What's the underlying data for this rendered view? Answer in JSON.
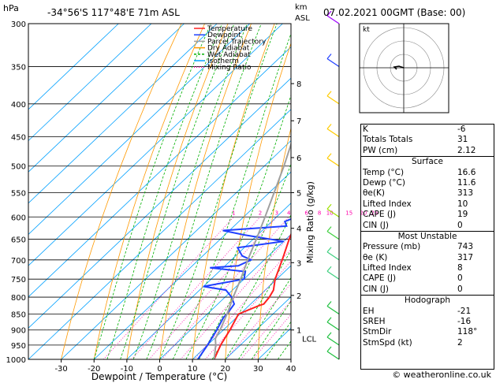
{
  "header": {
    "left_unit": "hPa",
    "location": "-34°56'S  117°48'E  71m  ASL",
    "right_unit": "km\nASL",
    "datetime": "07.02.2021  00GMT  (Base: 00)"
  },
  "footer": {
    "credit": "© weatheronline.co.uk"
  },
  "colors": {
    "temperature": "#ff2020",
    "dewpoint": "#2040ff",
    "parcel": "#a0a0a0",
    "dry_adiabat": "#ff9900",
    "wet_adiabat": "#00b000",
    "isotherm": "#00a0ff",
    "mixing_ratio": "#ff00aa"
  },
  "hodograph": {
    "label": "kt",
    "rings": [
      10,
      20,
      30
    ]
  },
  "indices": {
    "basic": [
      {
        "label": "K",
        "value": "-6"
      },
      {
        "label": "Totals Totals",
        "value": "31"
      },
      {
        "label": "PW (cm)",
        "value": "2.12"
      }
    ],
    "surface": {
      "title": "Surface",
      "rows": [
        {
          "label": "Temp (°C)",
          "value": "16.6"
        },
        {
          "label": "Dewp (°C)",
          "value": "11.6"
        },
        {
          "label": "θe(K)",
          "value": "313"
        },
        {
          "label": "Lifted Index",
          "value": "10"
        },
        {
          "label": "CAPE (J)",
          "value": "19"
        },
        {
          "label": "CIN (J)",
          "value": "0"
        }
      ]
    },
    "most_unstable": {
      "title": "Most Unstable",
      "rows": [
        {
          "label": "Pressure (mb)",
          "value": "743"
        },
        {
          "label": "θe (K)",
          "value": "317"
        },
        {
          "label": "Lifted Index",
          "value": "8"
        },
        {
          "label": "CAPE (J)",
          "value": "0"
        },
        {
          "label": "CIN (J)",
          "value": "0"
        }
      ]
    },
    "hodograph": {
      "title": "Hodograph",
      "rows": [
        {
          "label": "EH",
          "value": "-21"
        },
        {
          "label": "SREH",
          "value": "-16"
        },
        {
          "label": "StmDir",
          "value": "118°"
        },
        {
          "label": "StmSpd (kt)",
          "value": "2"
        }
      ]
    }
  },
  "chart_data": {
    "type": "line",
    "title": "",
    "xlabel": "Dewpoint / Temperature (°C)",
    "ylabel": "Mixing Ratio (g/kg)",
    "x_ticks": [
      -30,
      -20,
      -10,
      0,
      10,
      20,
      30,
      40
    ],
    "xlim": [
      -40,
      40
    ],
    "pressure_levels": [
      300,
      350,
      400,
      450,
      500,
      550,
      600,
      650,
      700,
      750,
      800,
      850,
      900,
      950,
      1000
    ],
    "ylim_hpa": [
      1000,
      300
    ],
    "y_scale": "log",
    "height_km_labels": [
      {
        "km": "1",
        "p": 900
      },
      {
        "km": "LCL",
        "p": 928
      },
      {
        "km": "2",
        "p": 795
      },
      {
        "km": "3",
        "p": 707
      },
      {
        "km": "4",
        "p": 625
      },
      {
        "km": "5",
        "p": 550
      },
      {
        "km": "6",
        "p": 485
      },
      {
        "km": "7",
        "p": 425
      },
      {
        "km": "8",
        "p": 372
      }
    ],
    "mixing_ratio_labels": [
      "1",
      "2",
      "3",
      "4",
      "6",
      "8",
      "10",
      "15",
      "20",
      "25"
    ],
    "mixing_ratio_values": [
      1,
      2,
      3,
      4,
      6,
      8,
      10,
      15,
      20,
      25
    ],
    "legend": [
      "Temperature",
      "Dewpoint",
      "Parcel Trajectory",
      "Dry Adiabat",
      "Wet Adiabat",
      "Isotherm",
      "Mixing Ratio"
    ],
    "legend_position": "top-left",
    "series": [
      {
        "name": "Temperature",
        "p": [
          1000,
          950,
          900,
          850,
          825,
          820,
          800,
          780,
          750,
          700,
          650,
          600,
          550,
          500,
          450,
          420,
          400,
          370,
          350,
          320,
          300
        ],
        "t": [
          16.6,
          14,
          12,
          9.5,
          13,
          14,
          13.5,
          12.5,
          9.5,
          5.5,
          1,
          -3.5,
          -9,
          -15,
          -21,
          -25,
          -29,
          -36,
          -38,
          -42,
          -45
        ]
      },
      {
        "name": "Dewpoint",
        "p": [
          1000,
          950,
          900,
          860,
          850,
          820,
          800,
          780,
          770,
          750,
          730,
          720,
          715,
          700,
          690,
          670,
          655,
          640,
          630,
          620,
          610,
          600,
          550,
          500,
          470,
          450,
          420,
          410,
          400,
          395,
          390,
          370,
          350,
          300
        ],
        "t": [
          11.6,
          10,
          8,
          6,
          6,
          5,
          2,
          -2,
          -10,
          0,
          -2,
          -14,
          -6,
          -4,
          -8,
          -12,
          0,
          -14,
          -22,
          -4,
          -6,
          -4,
          -8,
          -12,
          -20,
          -24,
          -24,
          -20,
          -12,
          -8,
          -6,
          -5,
          -4,
          -2
        ]
      },
      {
        "name": "Parcel Trajectory",
        "p": [
          1000,
          950,
          928,
          900,
          850,
          800,
          750,
          700,
          650,
          600,
          550,
          500,
          450,
          400,
          350,
          300
        ],
        "t": [
          16.6,
          12.5,
          10.3,
          9,
          6,
          2.5,
          -1,
          -5,
          -9,
          -13.5,
          -18.5,
          -24,
          -30.5,
          -38,
          -46,
          -55
        ]
      }
    ]
  }
}
